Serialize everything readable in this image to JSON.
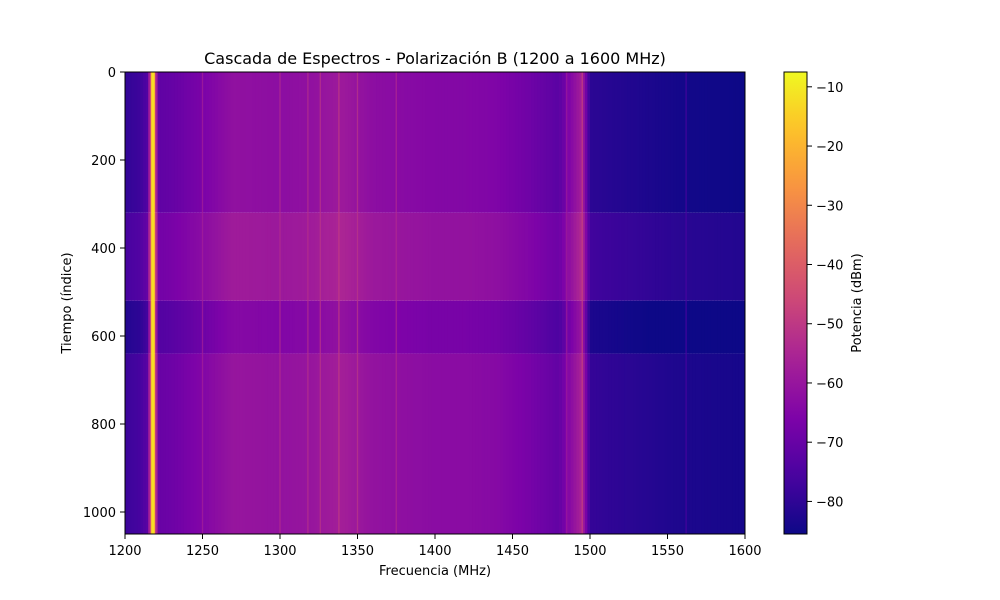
{
  "chart_data": {
    "type": "heatmap",
    "title": "Cascada de Espectros - Polarización B (1200 a 1600 MHz)",
    "xlabel": "Frecuencia (MHz)",
    "ylabel": "Tiempo (índice)",
    "xlim": [
      1200,
      1600
    ],
    "ylim": [
      0,
      1050
    ],
    "y_inverted": true,
    "x_ticks": [
      "1200",
      "1250",
      "1300",
      "1350",
      "1400",
      "1450",
      "1500",
      "1550",
      "1600"
    ],
    "y_ticks": [
      "0",
      "200",
      "400",
      "600",
      "800",
      "1000"
    ],
    "colormap": "plasma",
    "colorbar": {
      "label": "Potencia (dBm)",
      "vmin": -85.5,
      "vmax": -7.5,
      "ticks": [
        "−10",
        "−20",
        "−30",
        "−40",
        "−50",
        "−60",
        "−70",
        "−80"
      ]
    },
    "spectrum_profile_dbm": [
      {
        "freq": 1200,
        "power": -78
      },
      {
        "freq": 1210,
        "power": -76
      },
      {
        "freq": 1215,
        "power": -72
      },
      {
        "freq": 1218,
        "power": -10
      },
      {
        "freq": 1221,
        "power": -70
      },
      {
        "freq": 1230,
        "power": -69
      },
      {
        "freq": 1250,
        "power": -65
      },
      {
        "freq": 1270,
        "power": -60
      },
      {
        "freq": 1300,
        "power": -61
      },
      {
        "freq": 1320,
        "power": -60
      },
      {
        "freq": 1340,
        "power": -57
      },
      {
        "freq": 1360,
        "power": -61
      },
      {
        "freq": 1380,
        "power": -62
      },
      {
        "freq": 1400,
        "power": -63
      },
      {
        "freq": 1420,
        "power": -63
      },
      {
        "freq": 1440,
        "power": -64
      },
      {
        "freq": 1460,
        "power": -67
      },
      {
        "freq": 1480,
        "power": -71
      },
      {
        "freq": 1495,
        "power": -55
      },
      {
        "freq": 1500,
        "power": -79
      },
      {
        "freq": 1530,
        "power": -81
      },
      {
        "freq": 1560,
        "power": -83
      },
      {
        "freq": 1600,
        "power": -84
      }
    ],
    "time_bands": [
      {
        "start": 0,
        "end": 320,
        "offset_db": -1.5
      },
      {
        "start": 320,
        "end": 520,
        "offset_db": 2
      },
      {
        "start": 520,
        "end": 640,
        "offset_db": -4
      },
      {
        "start": 640,
        "end": 700,
        "offset_db": 0
      },
      {
        "start": 700,
        "end": 1050,
        "offset_db": 0
      }
    ],
    "persistent_lines_mhz": [
      1218,
      1250,
      1300,
      1318,
      1326,
      1338,
      1350,
      1375,
      1485,
      1495,
      1562
    ]
  }
}
